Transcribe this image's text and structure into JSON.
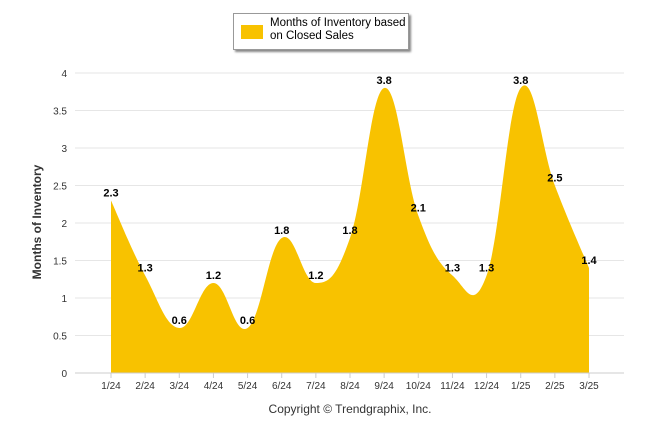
{
  "chart_data": {
    "type": "area",
    "categories": [
      "1/24",
      "2/24",
      "3/24",
      "4/24",
      "5/24",
      "6/24",
      "7/24",
      "8/24",
      "9/24",
      "10/24",
      "11/24",
      "12/24",
      "1/25",
      "2/25",
      "3/25"
    ],
    "series": [
      {
        "name": "Months of Inventory based on Closed Sales",
        "values": [
          2.3,
          1.3,
          0.6,
          1.2,
          0.6,
          1.8,
          1.2,
          1.8,
          3.8,
          2.1,
          1.3,
          1.3,
          3.8,
          2.5,
          1.4
        ]
      }
    ],
    "ylabel": "Months of Inventory",
    "ylim": [
      0,
      4
    ],
    "yticks": [
      "0",
      "0.5",
      "1",
      "1.5",
      "2",
      "2.5",
      "3",
      "3.5",
      "4"
    ],
    "grid": true,
    "legend_position": "top-center",
    "fill_color": "#F8C200",
    "credit": "Copyright © Trendgraphix, Inc."
  },
  "legend": {
    "label_line1": "Months of Inventory based",
    "label_line2": "on Closed Sales"
  }
}
